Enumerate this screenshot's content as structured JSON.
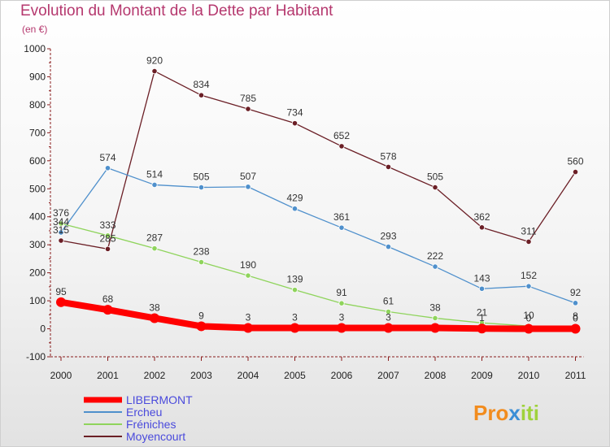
{
  "header": {
    "title": "Evolution du Montant de la Dette par Habitant",
    "subtitle": "(en €)"
  },
  "logo": {
    "text": "Proxiti"
  },
  "colors": {
    "background_top": "#ffffff",
    "background_bottom": "#e2e2e2",
    "title": "#b5386e",
    "axis": "#8a1c1c",
    "legend_text": "#4a4adc"
  },
  "chart_data": {
    "type": "line",
    "title": "Evolution du Montant de la Dette par Habitant",
    "subtitle": "(en €)",
    "xlabel": "",
    "ylabel": "",
    "ylim": [
      -100,
      1000
    ],
    "yticks": [
      -100,
      0,
      100,
      200,
      300,
      400,
      500,
      600,
      700,
      800,
      900,
      1000
    ],
    "x": [
      "2000",
      "2001",
      "2002",
      "2003",
      "2004",
      "2005",
      "2006",
      "2007",
      "2008",
      "2009",
      "2010",
      "2011"
    ],
    "grid": false,
    "legend_position": "bottom-left",
    "series": [
      {
        "name": "LIBERMONT",
        "color": "#ff0000",
        "values": [
          95,
          68,
          38,
          9,
          3,
          3,
          3,
          3,
          3,
          1,
          0,
          0
        ],
        "labels": [
          "95",
          "68",
          "38",
          "9",
          "3",
          "3",
          "3",
          "3",
          "",
          "1",
          "0",
          "0"
        ]
      },
      {
        "name": "Ercheu",
        "color": "#4f90cc",
        "values": [
          344,
          574,
          514,
          505,
          507,
          429,
          361,
          293,
          222,
          143,
          152,
          92
        ],
        "labels": [
          "344",
          "574",
          "514",
          "505",
          "507",
          "429",
          "361",
          "293",
          "222",
          "143",
          "152",
          "92"
        ]
      },
      {
        "name": "Fréniches",
        "color": "#8fd45c",
        "values": [
          376,
          333,
          287,
          238,
          190,
          139,
          91,
          61,
          38,
          21,
          10,
          8
        ],
        "labels": [
          "376",
          "333",
          "287",
          "238",
          "190",
          "139",
          "91",
          "61",
          "38",
          "21",
          "10",
          "8"
        ]
      },
      {
        "name": "Moyencourt",
        "color": "#6b1f26",
        "values": [
          315,
          285,
          920,
          834,
          785,
          734,
          652,
          578,
          505,
          362,
          311,
          560
        ],
        "labels": [
          "315",
          "285",
          "920",
          "834",
          "785",
          "734",
          "652",
          "578",
          "505",
          "362",
          "311",
          "560"
        ]
      }
    ]
  }
}
